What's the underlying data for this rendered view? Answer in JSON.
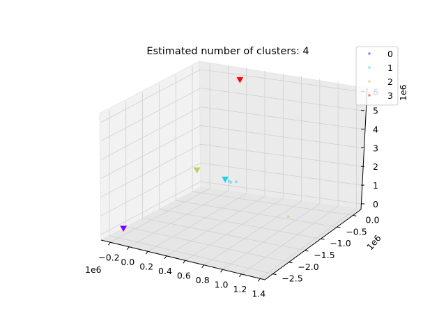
{
  "chart_data": {
    "type": "scatter",
    "title": "Estimated number of clusters: 4",
    "xlabel": "",
    "ylabel": "",
    "zlabel": "",
    "x_ticks": [
      "−0.2",
      "0.0",
      "0.2",
      "0.4",
      "0.6",
      "0.8",
      "1.0",
      "1.2",
      "1.4"
    ],
    "y_ticks": [
      "−2.5",
      "−2.0",
      "−1.5",
      "−1.0",
      "−0.5",
      "0.0"
    ],
    "z_ticks": [
      "0",
      "1",
      "2",
      "3",
      "4",
      "5",
      "6"
    ],
    "x_offset": "1e6",
    "y_offset": "1e6",
    "z_offset": "1e6",
    "legend": {
      "placement": "top-right",
      "entries": [
        {
          "label": "0",
          "color": "#b36cff"
        },
        {
          "label": "1",
          "color": "#7fe6ff"
        },
        {
          "label": "2",
          "color": "#dfe09a"
        },
        {
          "label": "3",
          "color": "#ff7f7f"
        }
      ]
    },
    "series": [
      {
        "name": "0",
        "color": "#8000ff",
        "points": [
          [
            -0.22,
            -2.3,
            0.0
          ]
        ],
        "centroid": [
          -0.22,
          -2.3,
          0.0
        ]
      },
      {
        "name": "1",
        "color": "#1ad4e8",
        "points": [
          [
            0.05,
            0.02,
            0.55
          ],
          [
            0.1,
            0.0,
            0.55
          ],
          [
            0.12,
            0.0,
            0.5
          ],
          [
            0.16,
            0.05,
            0.5
          ]
        ],
        "centroid": [
          0.05,
          0.02,
          0.6
        ]
      },
      {
        "name": "2",
        "color": "#c8c860",
        "points": [
          [
            1.15,
            -1.15,
            0.8
          ],
          [
            -0.25,
            0.0,
            0.9
          ]
        ],
        "centroid": [
          -0.25,
          0.0,
          0.9
        ]
      },
      {
        "name": "3",
        "color": "#ff0000",
        "points": [
          [
            0.2,
            0.05,
            6.0
          ]
        ],
        "centroid": [
          0.2,
          0.05,
          6.0
        ]
      }
    ],
    "grid": true
  }
}
